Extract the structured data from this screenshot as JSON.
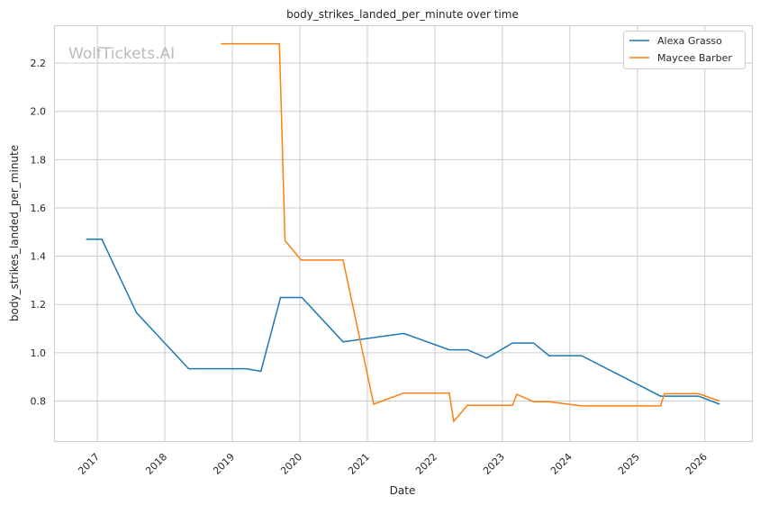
{
  "chart_data": {
    "type": "line",
    "title": "body_strikes_landed_per_minute over time",
    "xlabel": "Date",
    "ylabel": "body_strikes_landed_per_minute",
    "watermark": "WolfTickets.AI",
    "x_ticks": [
      "2017",
      "2018",
      "2019",
      "2020",
      "2021",
      "2022",
      "2023",
      "2024",
      "2025",
      "2026"
    ],
    "y_ticks": [
      "0.8",
      "1.0",
      "1.2",
      "1.4",
      "1.6",
      "1.8",
      "2.0",
      "2.2"
    ],
    "xlim": [
      "2016-05-10",
      "2026-09-12"
    ],
    "ylim": [
      0.634,
      2.357
    ],
    "grid": true,
    "legend_position": "top-right",
    "series": [
      {
        "name": "Alexa Grasso",
        "color": "#1f77b4",
        "x": [
          "2016-11-01",
          "2017-01-25",
          "2017-07-30",
          "2018-05-08",
          "2019-03-15",
          "2019-06-03",
          "2019-09-18",
          "2020-01-12",
          "2020-08-22",
          "2021-07-16",
          "2022-03-18",
          "2022-06-25",
          "2022-10-08",
          "2023-02-25",
          "2023-06-18",
          "2023-09-10",
          "2024-03-03",
          "2025-05-05",
          "2025-11-28",
          "2026-03-20"
        ],
        "y": [
          1.47,
          1.47,
          1.166,
          0.934,
          0.934,
          0.923,
          1.229,
          1.229,
          1.045,
          1.08,
          1.012,
          1.012,
          0.978,
          1.04,
          1.04,
          0.988,
          0.988,
          0.82,
          0.82,
          0.787
        ]
      },
      {
        "name": "Maycee Barber",
        "color": "#ff7f0e",
        "x": [
          "2018-10-30",
          "2019-09-12",
          "2019-10-12",
          "2020-01-08",
          "2020-08-22",
          "2021-02-05",
          "2021-07-16",
          "2022-03-18",
          "2022-04-12",
          "2022-06-25",
          "2023-02-25",
          "2023-03-18",
          "2023-06-18",
          "2023-09-10",
          "2024-03-03",
          "2025-05-05",
          "2025-05-26",
          "2025-11-28",
          "2026-03-20"
        ],
        "y": [
          2.28,
          2.28,
          1.465,
          1.384,
          1.384,
          0.787,
          0.833,
          0.833,
          0.716,
          0.782,
          0.782,
          0.828,
          0.797,
          0.797,
          0.78,
          0.78,
          0.83,
          0.83,
          0.8
        ]
      }
    ]
  }
}
